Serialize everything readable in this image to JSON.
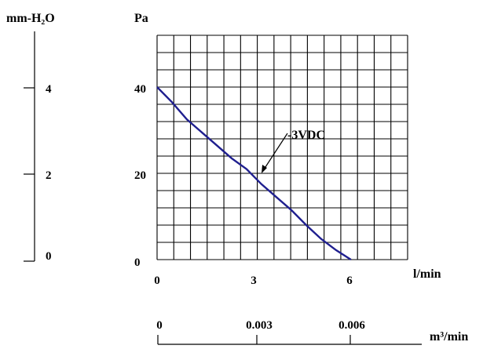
{
  "chart_data": {
    "type": "line",
    "xlabel": "l/min",
    "ylabel": "Pa",
    "xlim": [
      0,
      8.4
    ],
    "ylim": [
      0,
      52
    ],
    "x_ticks": [
      "0",
      "3",
      "6"
    ],
    "y_ticks": [
      "0",
      "20",
      "40"
    ],
    "grid": true,
    "series": [
      {
        "name": "3VDC",
        "color": "#1f1f8f",
        "x": [
          0,
          0.5,
          1.0,
          1.5,
          2.0,
          2.5,
          3.0,
          3.5,
          4.0,
          4.5,
          5.0,
          5.5,
          6.0,
          6.5
        ],
        "y": [
          40,
          36.5,
          32.5,
          29.5,
          26.5,
          23.5,
          21.0,
          17.5,
          14.5,
          11.5,
          8.0,
          4.8,
          2.2,
          0
        ]
      }
    ],
    "annotation": {
      "text": "-3VDC",
      "point": [
        3.3,
        20.0
      ]
    },
    "secondary_y": {
      "label": "mm-H₂O",
      "ticks": [
        "0",
        "2",
        "4"
      ]
    },
    "secondary_x": {
      "label": "m³/min",
      "ticks": [
        "0",
        "0.003",
        "0.006"
      ]
    }
  }
}
